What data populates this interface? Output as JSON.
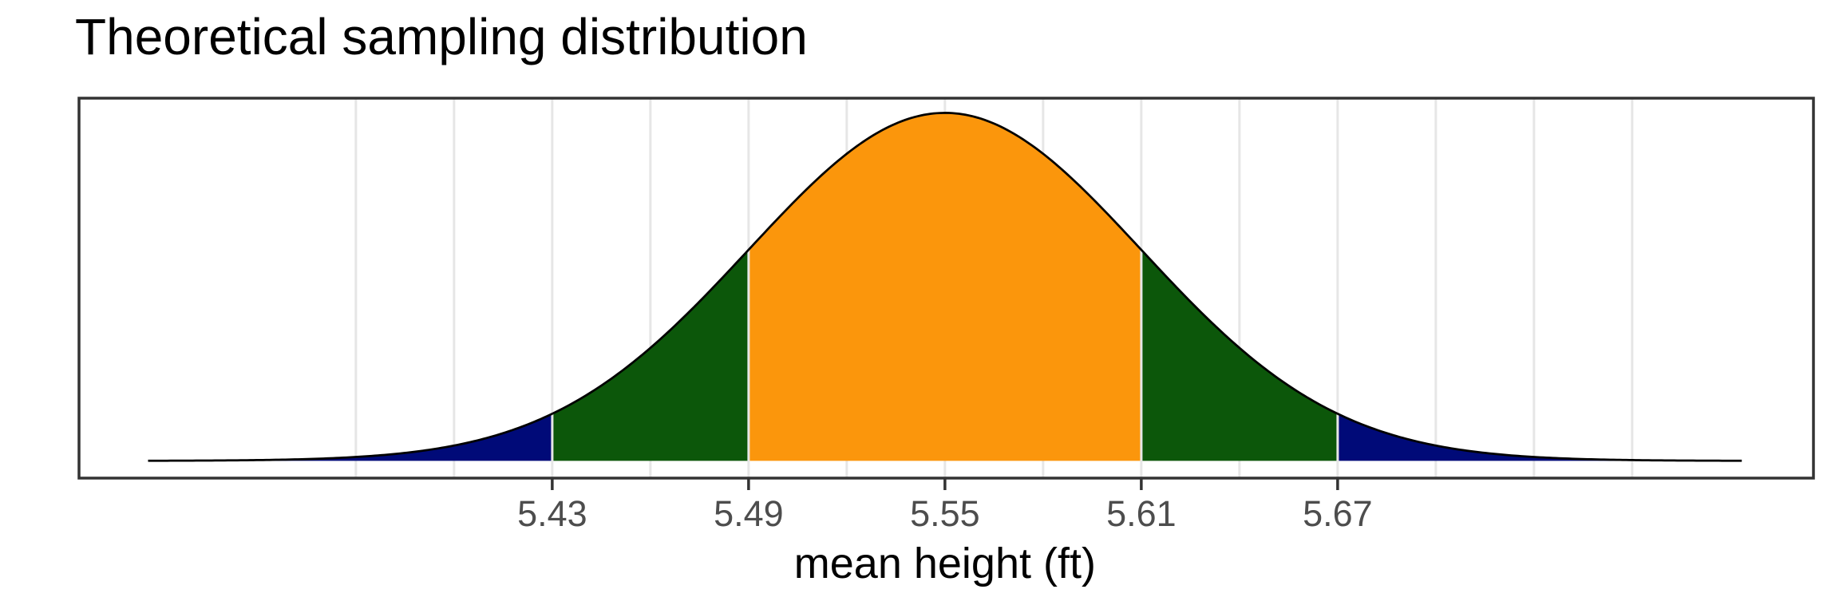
{
  "chart_data": {
    "type": "area",
    "subtype": "normal-density-curve",
    "title": "Theoretical sampling distribution",
    "xlabel": "mean height (ft)",
    "ylabel": "",
    "mean": 5.55,
    "sd": 0.06,
    "peak_density": 6.649,
    "curve_domain": [
      5.3065,
      5.7935
    ],
    "x_axis_range": [
      5.2854,
      5.8154
    ],
    "ylim": [
      -0.33,
      6.93
    ],
    "x_tick_labels": [
      "5.43",
      "5.49",
      "5.55",
      "5.61",
      "5.67"
    ],
    "x_tick_values": [
      5.43,
      5.49,
      5.55,
      5.61,
      5.67
    ],
    "gridline_values": [
      5.37,
      5.4,
      5.43,
      5.46,
      5.49,
      5.52,
      5.55,
      5.58,
      5.61,
      5.64,
      5.67,
      5.7,
      5.73,
      5.76
    ],
    "grid": "vertical-only",
    "legend": "none",
    "regions": [
      {
        "label": "lower tail beyond 2 sd",
        "from": 5.3065,
        "to": 5.43,
        "color": "#000a78"
      },
      {
        "label": "between 1 and 2 sd below",
        "from": 5.43,
        "to": 5.49,
        "color": "#0c570a"
      },
      {
        "label": "within 1 sd of mean",
        "from": 5.49,
        "to": 5.61,
        "color": "#fb960c"
      },
      {
        "label": "between 1 and 2 sd above",
        "from": 5.61,
        "to": 5.67,
        "color": "#0c570a"
      },
      {
        "label": "upper tail beyond 2 sd",
        "from": 5.67,
        "to": 5.7935,
        "color": "#000a78"
      }
    ],
    "colors": {
      "curve_stroke": "#000000",
      "gridline": "#e6e6e6",
      "panel_border": "#333333",
      "tick_mark": "#333333",
      "tick_label": "#4d4d4d",
      "axis_title": "#000000",
      "title": "#000000",
      "panel_background": "#ffffff",
      "seam": "#ffffff"
    }
  }
}
